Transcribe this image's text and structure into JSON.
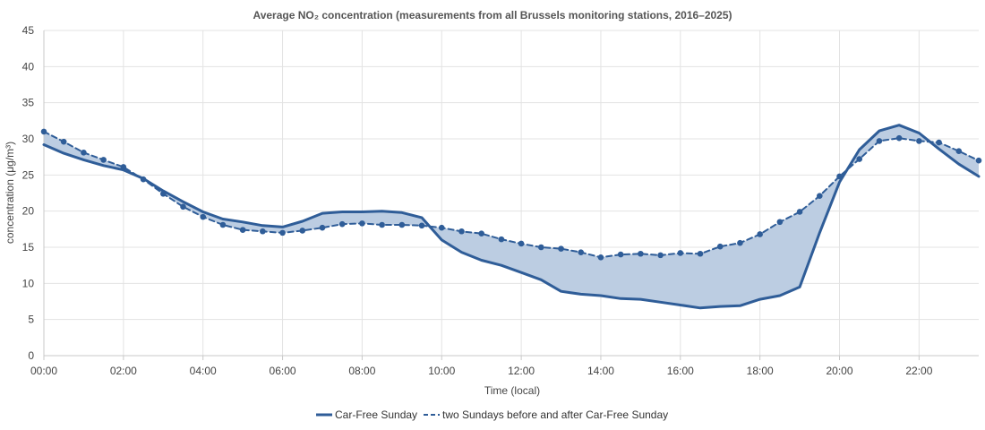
{
  "chart_data": {
    "type": "line",
    "title": "Average NO₂ concentration (measurements from all Brussels monitoring stations, 2016–2025)",
    "xlabel": "Time (local)",
    "ylabel": "concentration (μg/m³)",
    "x_unit": "hours",
    "xlim": [
      0,
      23.5
    ],
    "ylim": [
      0,
      45
    ],
    "yticks": [
      0,
      5,
      10,
      15,
      20,
      25,
      30,
      35,
      40,
      45
    ],
    "xtick_values": [
      0,
      2,
      4,
      6,
      8,
      10,
      12,
      14,
      16,
      18,
      20,
      22
    ],
    "xtick_labels": [
      "00:00",
      "02:00",
      "04:00",
      "06:00",
      "08:00",
      "10:00",
      "12:00",
      "14:00",
      "16:00",
      "18:00",
      "20:00",
      "22:00"
    ],
    "grid": true,
    "legend_position": "bottom",
    "fill_between_series": true,
    "x": [
      0,
      0.5,
      1,
      1.5,
      2,
      2.5,
      3,
      3.5,
      4,
      4.5,
      5,
      5.5,
      6,
      6.5,
      7,
      7.5,
      8,
      8.5,
      9,
      9.5,
      10,
      10.5,
      11,
      11.5,
      12,
      12.5,
      13,
      13.5,
      14,
      14.5,
      15,
      15.5,
      16,
      16.5,
      17,
      17.5,
      18,
      18.5,
      19,
      19.5,
      20,
      20.5,
      21,
      21.5,
      22,
      22.5,
      23,
      23.5
    ],
    "series": [
      {
        "name": "Car-Free Sunday",
        "style": "solid",
        "markers": false,
        "color": "#2f5d98",
        "values": [
          29.2,
          28.0,
          27.1,
          26.3,
          25.7,
          24.5,
          22.8,
          21.3,
          19.9,
          18.9,
          18.5,
          18.0,
          17.8,
          18.6,
          19.7,
          19.9,
          19.9,
          20.0,
          19.8,
          19.1,
          16.0,
          14.3,
          13.2,
          12.5,
          11.5,
          10.5,
          8.9,
          8.5,
          8.3,
          7.9,
          7.8,
          7.4,
          7.0,
          6.6,
          6.8,
          6.9,
          7.8,
          8.3,
          9.5,
          17.0,
          24.0,
          28.5,
          31.1,
          31.9,
          30.8,
          28.6,
          26.5,
          24.8
        ]
      },
      {
        "name": "two Sundays before and after Car-Free Sunday",
        "style": "dashed",
        "markers": true,
        "color": "#2f5d98",
        "values": [
          31.0,
          29.6,
          28.1,
          27.1,
          26.1,
          24.4,
          22.4,
          20.6,
          19.2,
          18.1,
          17.4,
          17.2,
          17.0,
          17.3,
          17.7,
          18.2,
          18.3,
          18.1,
          18.1,
          18.0,
          17.7,
          17.2,
          16.9,
          16.1,
          15.5,
          15.0,
          14.8,
          14.3,
          13.6,
          14.0,
          14.1,
          13.9,
          14.2,
          14.1,
          15.1,
          15.6,
          16.8,
          18.5,
          19.9,
          22.1,
          24.8,
          27.2,
          29.7,
          30.1,
          29.7,
          29.5,
          28.3,
          27.0
        ]
      }
    ],
    "colors": {
      "line": "#2f5d98",
      "fill": "#bccde2",
      "grid": "#e3e3e3",
      "axis": "#c8c8c8"
    }
  }
}
